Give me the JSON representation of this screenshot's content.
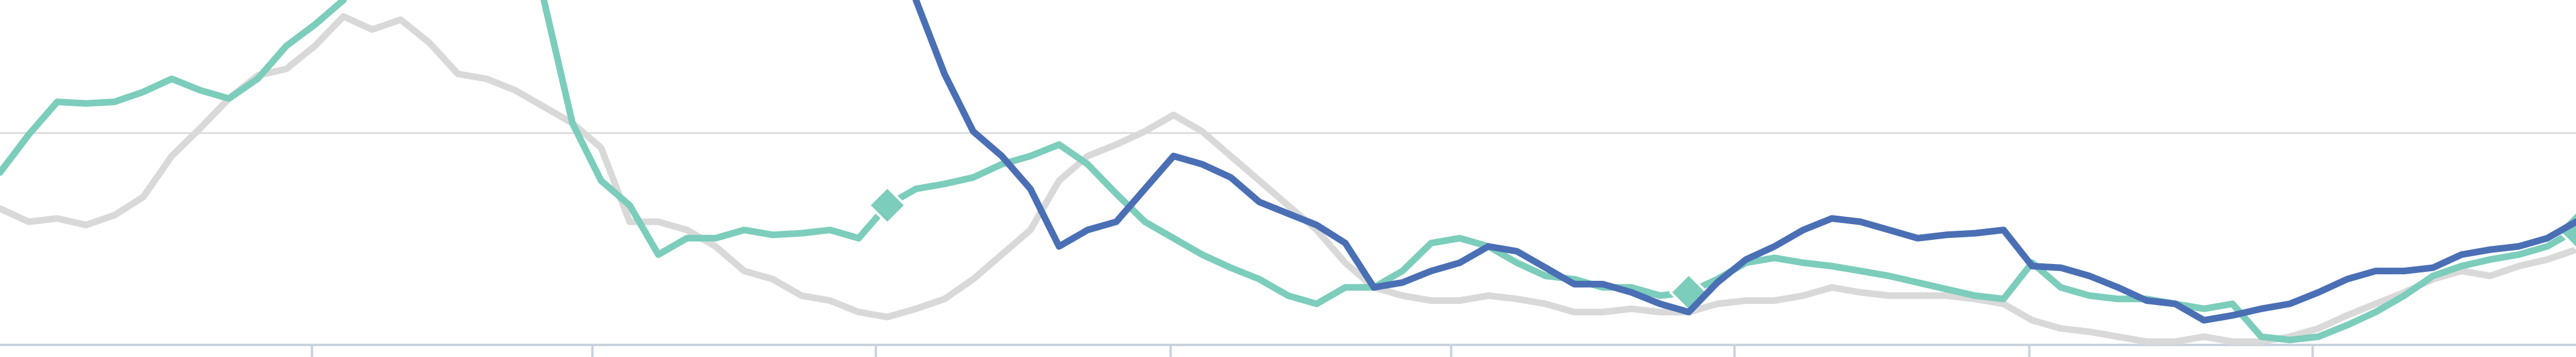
{
  "chart_data": {
    "type": "line",
    "x": [
      0,
      1,
      2,
      3,
      4,
      5,
      6,
      7,
      8,
      9,
      10,
      11,
      12,
      13,
      14,
      15,
      16,
      17,
      18,
      19,
      20,
      21,
      22,
      23,
      24,
      25,
      26,
      27,
      28,
      29,
      30,
      31,
      32,
      33,
      34,
      35,
      36,
      37,
      38,
      39,
      40,
      41,
      42,
      43,
      44,
      45,
      46,
      47,
      48,
      49,
      50,
      51,
      52,
      53,
      54,
      55,
      56,
      57,
      58,
      59,
      60,
      61,
      62,
      63,
      64,
      65,
      66,
      67,
      68,
      69,
      70,
      71,
      72,
      73,
      74,
      75,
      76,
      77,
      78,
      79,
      80,
      81,
      82,
      83,
      84,
      85,
      86,
      87,
      88,
      89,
      90
    ],
    "xlim": [
      0,
      90
    ],
    "xticks": [
      10.9,
      20.7,
      30.6,
      40.9,
      50.7,
      60.6,
      70.9,
      80.8
    ],
    "ylim": [
      0,
      210
    ],
    "yticks": [
      0,
      129
    ],
    "grid": true,
    "series": [
      {
        "color": "#d9d9d9",
        "values": [
          83,
          75,
          77,
          73,
          79,
          90,
          115,
          132,
          150,
          164,
          168,
          182,
          200,
          192,
          198,
          184,
          165,
          162,
          155,
          145,
          135,
          120,
          75,
          75,
          70,
          60,
          45,
          40,
          30,
          27,
          20,
          17,
          22,
          28,
          40,
          55,
          70,
          100,
          115,
          122,
          130,
          140,
          130,
          115,
          100,
          85,
          70,
          50,
          35,
          30,
          27,
          27,
          30,
          28,
          25,
          20,
          20,
          22,
          20,
          20,
          25,
          27,
          27,
          30,
          35,
          32,
          30,
          30,
          30,
          28,
          25,
          15,
          10,
          8,
          5,
          2,
          2,
          5,
          2,
          2,
          5,
          10,
          18,
          25,
          32,
          40,
          45,
          42,
          48,
          52,
          58
        ]
      },
      {
        "color": "#7ccdbb",
        "markers": [
          31,
          59,
          90
        ],
        "values": [
          105,
          128,
          148,
          147,
          148,
          154,
          162,
          155,
          150,
          162,
          182,
          195,
          210,
          null,
          null,
          null,
          null,
          null,
          null,
          210,
          135,
          100,
          85,
          55,
          65,
          65,
          70,
          67,
          68,
          70,
          65,
          85,
          95,
          98,
          102,
          110,
          115,
          122,
          110,
          92,
          75,
          65,
          55,
          47,
          40,
          30,
          25,
          35,
          35,
          45,
          62,
          65,
          60,
          50,
          42,
          40,
          35,
          35,
          30,
          32,
          40,
          50,
          53,
          50,
          48,
          45,
          42,
          38,
          34,
          30,
          28,
          50,
          35,
          30,
          28,
          28,
          25,
          22,
          25,
          5,
          3,
          5,
          12,
          20,
          30,
          42,
          48,
          52,
          55,
          60,
          70
        ]
      },
      {
        "color": "#4a6fb5",
        "values": [
          null,
          null,
          null,
          null,
          null,
          null,
          null,
          null,
          null,
          null,
          null,
          null,
          null,
          null,
          null,
          null,
          null,
          null,
          null,
          null,
          null,
          null,
          null,
          null,
          null,
          null,
          null,
          null,
          null,
          null,
          null,
          null,
          210,
          165,
          130,
          115,
          95,
          60,
          70,
          75,
          95,
          115,
          110,
          102,
          87,
          80,
          73,
          62,
          35,
          38,
          45,
          50,
          60,
          57,
          47,
          37,
          37,
          32,
          25,
          20,
          38,
          52,
          60,
          70,
          77,
          75,
          70,
          65,
          67,
          68,
          70,
          48,
          47,
          42,
          35,
          27,
          25,
          15,
          18,
          22,
          25,
          32,
          40,
          45,
          45,
          47,
          55,
          58,
          60,
          65,
          75
        ]
      }
    ]
  }
}
